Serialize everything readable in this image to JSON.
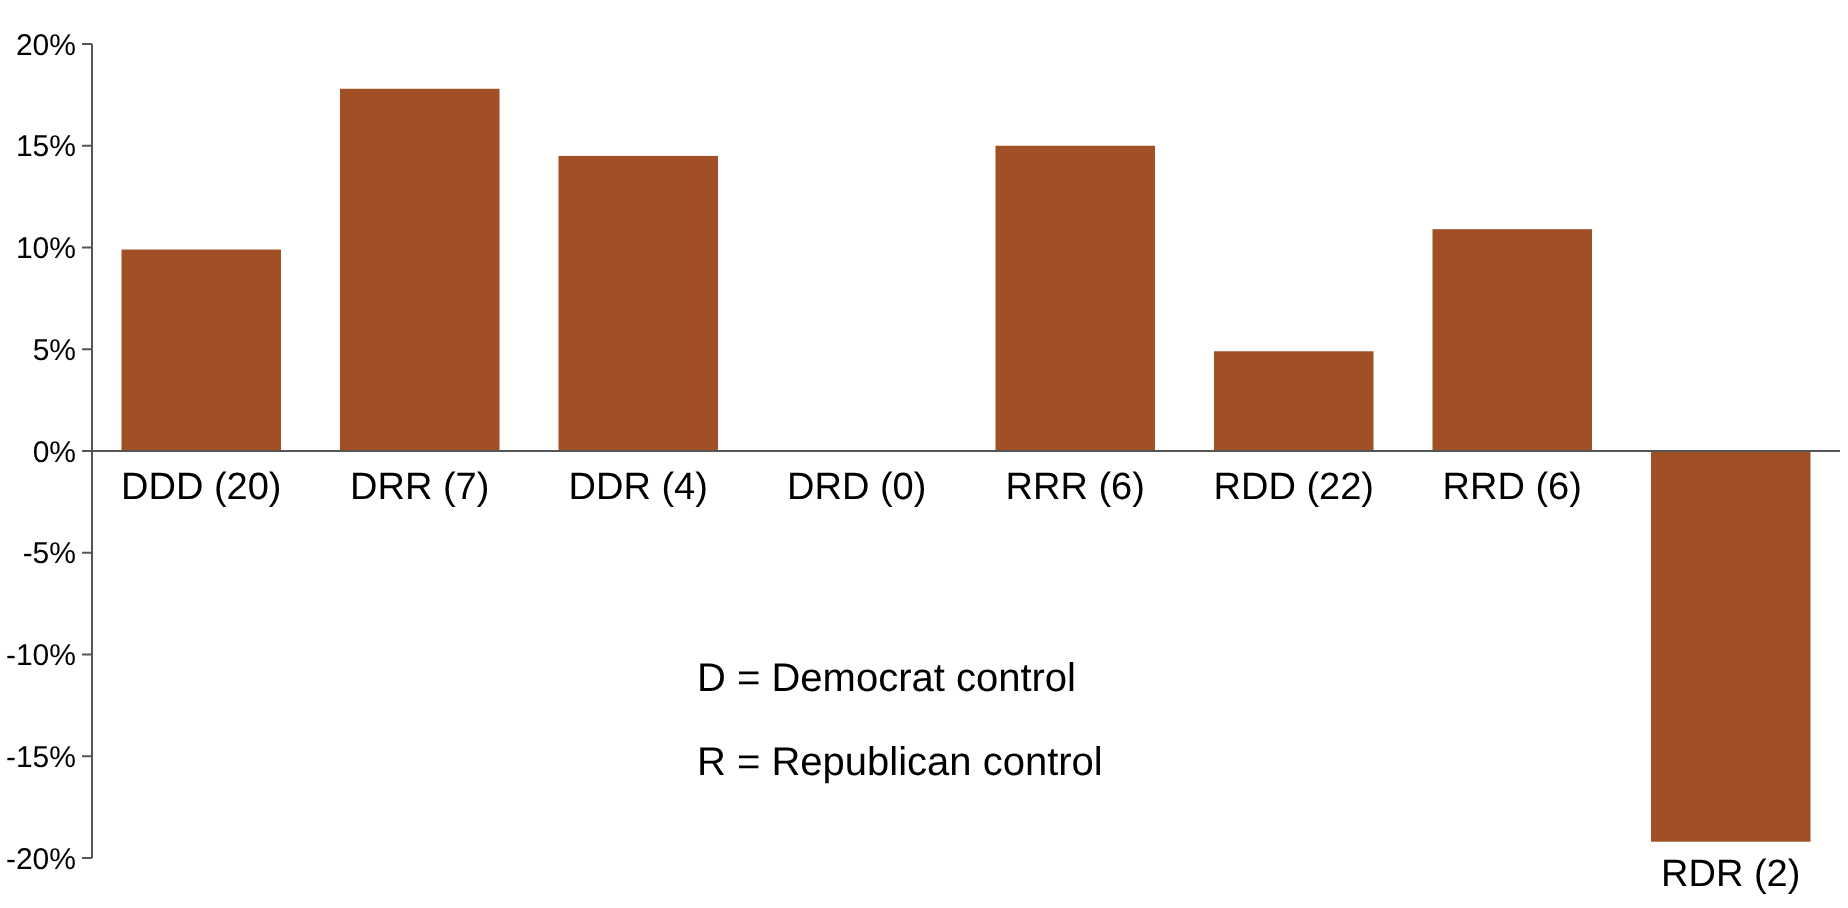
{
  "chart_data": {
    "type": "bar",
    "categories": [
      "DDD (20)",
      "DRR (7)",
      "DDR (4)",
      "DRD (0)",
      "RRR (6)",
      "RDD (22)",
      "RRD (6)",
      "RDR (2)"
    ],
    "values": [
      9.9,
      17.8,
      14.5,
      0,
      15,
      4.9,
      10.9,
      -19.2
    ],
    "color": "#a14f24",
    "ylim": [
      -20,
      20
    ],
    "yticks": [
      {
        "value": -20,
        "label": "-20%"
      },
      {
        "value": -15,
        "label": "-15%"
      },
      {
        "value": -10,
        "label": "-10%"
      },
      {
        "value": -5,
        "label": "-5%"
      },
      {
        "value": 0,
        "label": "0%"
      },
      {
        "value": 5,
        "label": "5%"
      },
      {
        "value": 10,
        "label": "10%"
      },
      {
        "value": 15,
        "label": "15%"
      },
      {
        "value": 20,
        "label": "20%"
      }
    ],
    "annotations": [
      "D = Democrat control",
      "R = Republican control"
    ],
    "grid": false
  }
}
